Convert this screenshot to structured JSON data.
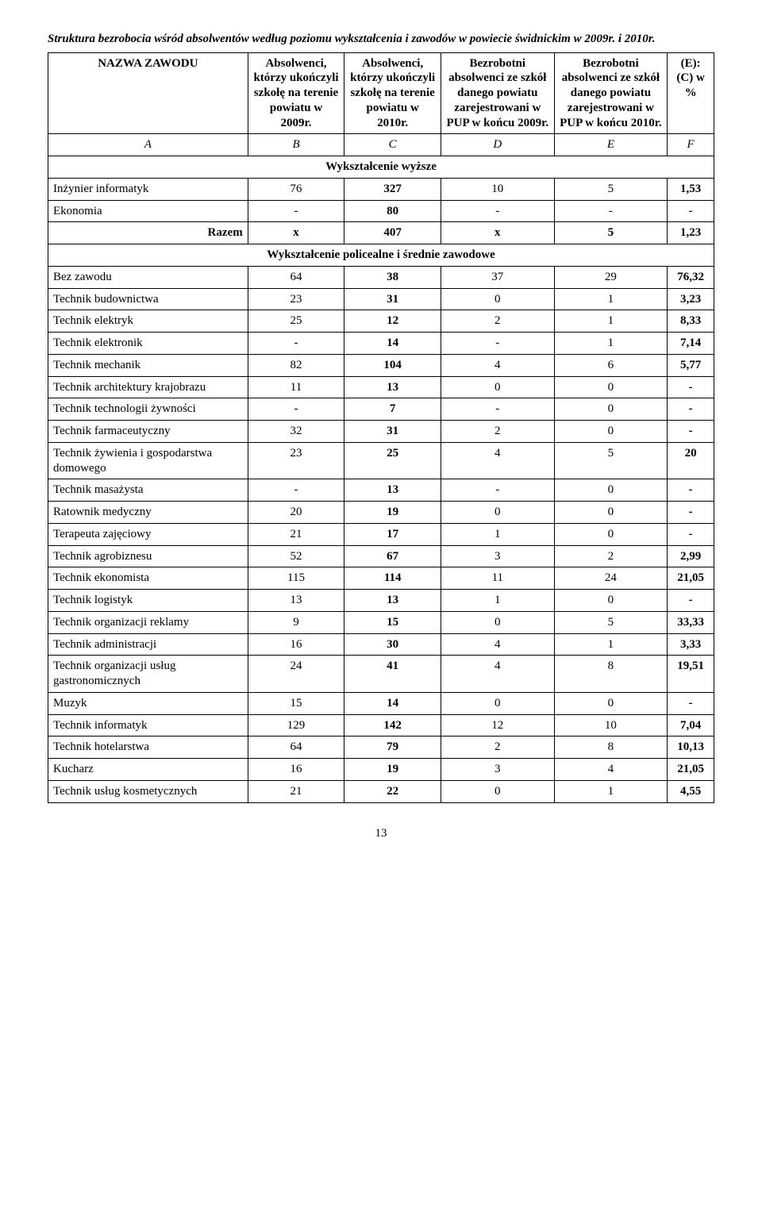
{
  "title": "Struktura bezrobocia wśród absolwentów według poziomu wykształcenia i zawodów w powiecie świdnickim w 2009r. i 2010r.",
  "header": {
    "name": "NAZWA ZAWODU",
    "b": "Absolwenci, którzy ukończyli szkołę na terenie powiatu w 2009r.",
    "c": "Absolwenci, którzy ukończyli szkołę na terenie powiatu w 2010r.",
    "d": "Bezrobotni absolwenci ze szkół danego powiatu zarejestrowani w PUP w końcu 2009r.",
    "e": "Bezrobotni absolwenci ze szkół danego powiatu zarejestrowani w PUP w końcu 2010r.",
    "f": "(E): (C) w %"
  },
  "letters": {
    "a": "A",
    "b": "B",
    "c": "C",
    "d": "D",
    "e": "E",
    "f": "F"
  },
  "sections": {
    "s1": {
      "title": "Wykształcenie wyższe",
      "rows": [
        {
          "label": "Inżynier informatyk",
          "b": "76",
          "c": "327",
          "d": "10",
          "e": "5",
          "f": "1,53"
        },
        {
          "label": "Ekonomia",
          "b": "-",
          "c": "80",
          "d": "-",
          "e": "-",
          "f": "-"
        }
      ],
      "razem": {
        "label": "Razem",
        "b": "x",
        "c": "407",
        "d": "x",
        "e": "5",
        "f": "1,23"
      }
    },
    "s2": {
      "title": "Wykształcenie policealne i średnie zawodowe",
      "rows": [
        {
          "label": "Bez zawodu",
          "b": "64",
          "c": "38",
          "d": "37",
          "e": "29",
          "f": "76,32"
        },
        {
          "label": "Technik budownictwa",
          "b": "23",
          "c": "31",
          "d": "0",
          "e": "1",
          "f": "3,23"
        },
        {
          "label": "Technik elektryk",
          "b": "25",
          "c": "12",
          "d": "2",
          "e": "1",
          "f": "8,33"
        },
        {
          "label": "Technik elektronik",
          "b": "-",
          "c": "14",
          "d": "-",
          "e": "1",
          "f": "7,14"
        },
        {
          "label": "Technik mechanik",
          "b": "82",
          "c": "104",
          "d": "4",
          "e": "6",
          "f": "5,77"
        },
        {
          "label": "Technik architektury krajobrazu",
          "b": "11",
          "c": "13",
          "d": "0",
          "e": "0",
          "f": "-"
        },
        {
          "label": "Technik technologii żywności",
          "b": "-",
          "c": "7",
          "d": "-",
          "e": "0",
          "f": "-"
        },
        {
          "label": "Technik farmaceutyczny",
          "b": "32",
          "c": "31",
          "d": "2",
          "e": "0",
          "f": "-"
        },
        {
          "label": "Technik żywienia i gospodarstwa domowego",
          "b": "23",
          "c": "25",
          "d": "4",
          "e": "5",
          "f": "20"
        },
        {
          "label": "Technik masażysta",
          "b": "-",
          "c": "13",
          "d": "-",
          "e": "0",
          "f": "-"
        },
        {
          "label": "Ratownik medyczny",
          "b": "20",
          "c": "19",
          "d": "0",
          "e": "0",
          "f": "-"
        },
        {
          "label": "Terapeuta zajęciowy",
          "b": "21",
          "c": "17",
          "d": "1",
          "e": "0",
          "f": "-"
        },
        {
          "label": "Technik agrobiznesu",
          "b": "52",
          "c": "67",
          "d": "3",
          "e": "2",
          "f": "2,99"
        },
        {
          "label": "Technik ekonomista",
          "b": "115",
          "c": "114",
          "d": "11",
          "e": "24",
          "f": "21,05"
        },
        {
          "label": "Technik logistyk",
          "b": "13",
          "c": "13",
          "d": "1",
          "e": "0",
          "f": "-"
        },
        {
          "label": "Technik organizacji reklamy",
          "b": "9",
          "c": "15",
          "d": "0",
          "e": "5",
          "f": "33,33"
        },
        {
          "label": "Technik administracji",
          "b": "16",
          "c": "30",
          "d": "4",
          "e": "1",
          "f": "3,33"
        },
        {
          "label": "Technik organizacji usług gastronomicznych",
          "b": "24",
          "c": "41",
          "d": "4",
          "e": "8",
          "f": "19,51"
        },
        {
          "label": "Muzyk",
          "b": "15",
          "c": "14",
          "d": "0",
          "e": "0",
          "f": "-"
        },
        {
          "label": "Technik informatyk",
          "b": "129",
          "c": "142",
          "d": "12",
          "e": "10",
          "f": "7,04"
        },
        {
          "label": "Technik hotelarstwa",
          "b": "64",
          "c": "79",
          "d": "2",
          "e": "8",
          "f": "10,13"
        },
        {
          "label": "Kucharz",
          "b": "16",
          "c": "19",
          "d": "3",
          "e": "4",
          "f": "21,05"
        },
        {
          "label": "Technik usług kosmetycznych",
          "b": "21",
          "c": "22",
          "d": "0",
          "e": "1",
          "f": "4,55"
        }
      ]
    }
  },
  "pageNumber": "13"
}
